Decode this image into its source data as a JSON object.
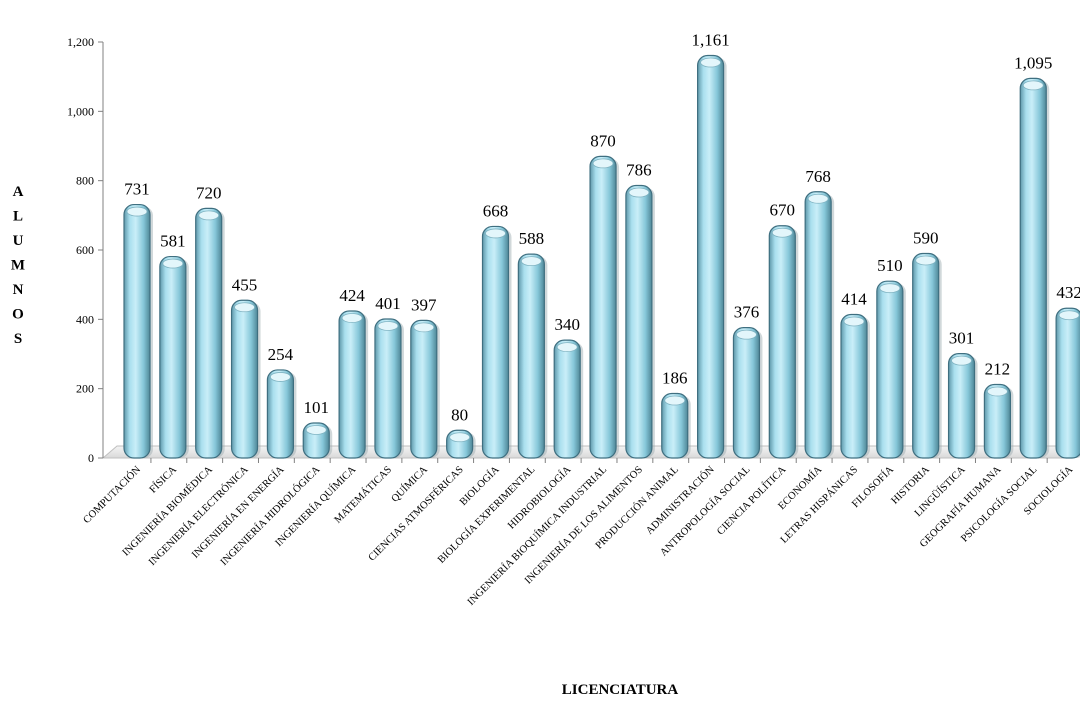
{
  "chart_data": {
    "type": "bar",
    "title": "",
    "xlabel": "LICENCIATURA",
    "ylabel": "ALUMNOS",
    "ylim": [
      0,
      1200
    ],
    "yticks": [
      "0",
      "200",
      "400",
      "600",
      "800",
      "1,000",
      "1,200"
    ],
    "ytick_values": [
      0,
      200,
      400,
      600,
      800,
      1000,
      1200
    ],
    "grid": false,
    "legend": "none",
    "bar_color": "#8fd0e0",
    "bar_edge_color": "#3f6f80",
    "categories": [
      "COMPUTACIÓN",
      "FÍSICA",
      "INGENIERÍA BIOMÉDICA",
      "INGENIERÍA ELECTRÓNICA",
      "INGENIERÍA EN ENERGÍA",
      "INGENIERÍA HIDROLÓGICA",
      "INGENIERÍA QUÍMICA",
      "MATEMÁTICAS",
      "QUÍMICA",
      "CIENCIAS ATMOSFÉRICAS",
      "BIOLOGÍA",
      "BIOLOGÍA EXPERIMENTAL",
      "HIDROBIOLOGÍA",
      "INGENIERÍA BIOQUÍMICA INDUSTRIAL",
      "INGENIERÍA DE LOS ALIMENTOS",
      "PRODUCCIÓN ANIMAL",
      "ADMINISTRACIÓN",
      "ANTROPOLOGÍA SOCIAL",
      "CIENCIA POLÍTICA",
      "ECONOMÍA",
      "LETRAS HISPÁNICAS",
      "FILOSOFÍA",
      "HISTORIA",
      "LINGÜÍSTICA",
      "GEOGRAFÍA HUMANA",
      "PSICOLOGÍA SOCIAL",
      "SOCIOLOGÍA"
    ],
    "values": [
      731,
      581,
      720,
      455,
      254,
      101,
      424,
      401,
      397,
      80,
      668,
      588,
      340,
      870,
      786,
      186,
      1161,
      376,
      670,
      768,
      414,
      510,
      590,
      301,
      212,
      1095,
      432
    ],
    "value_labels": [
      "731",
      "581",
      "720",
      "455",
      "254",
      "101",
      "424",
      "401",
      "397",
      "80",
      "668",
      "588",
      "340",
      "870",
      "786",
      "186",
      "1,161",
      "376",
      "670",
      "768",
      "414",
      "510",
      "590",
      "301",
      "212",
      "1,095",
      "432"
    ]
  }
}
